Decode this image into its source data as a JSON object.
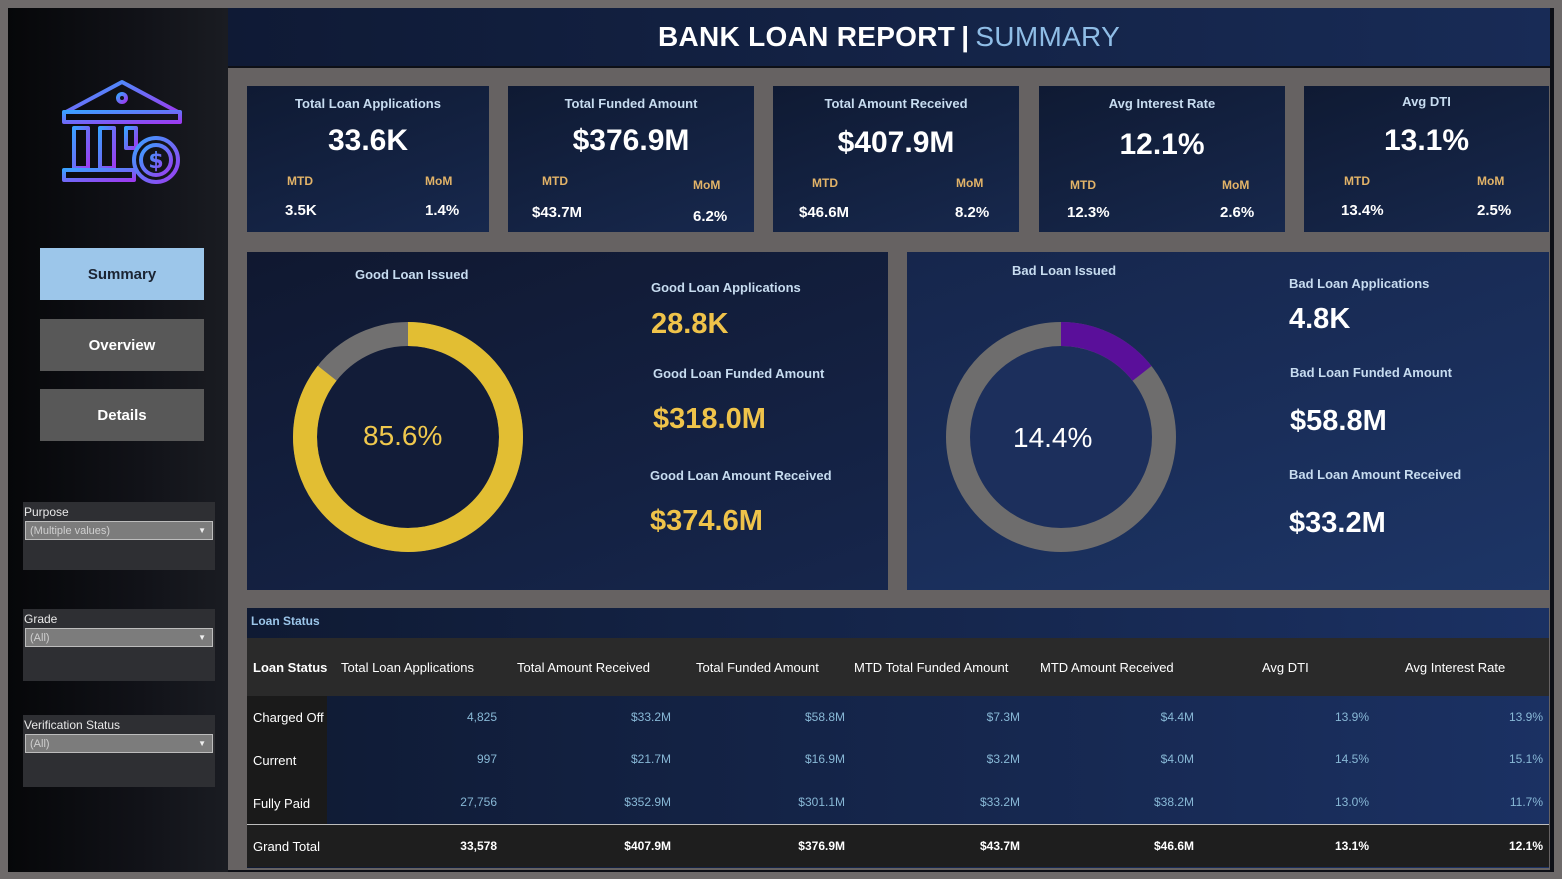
{
  "header": {
    "title_main": "BANK LOAN REPORT",
    "title_sep": "|",
    "title_sub": "SUMMARY"
  },
  "sidebar": {
    "logo": "bank-dollar-icon",
    "nav": [
      {
        "label": "Summary",
        "active": true
      },
      {
        "label": "Overview",
        "active": false
      },
      {
        "label": "Details",
        "active": false
      }
    ],
    "filters": [
      {
        "label": "Purpose",
        "value": "(Multiple values)"
      },
      {
        "label": "Grade",
        "value": "(All)"
      },
      {
        "label": "Verification Status",
        "value": "(All)"
      }
    ]
  },
  "kpis": [
    {
      "label": "Total Loan Applications",
      "value": "33.6K",
      "mtd_label": "MTD",
      "mtd": "3.5K",
      "mom_label": "MoM",
      "mom": "1.4%"
    },
    {
      "label": "Total Funded Amount",
      "value": "$376.9M",
      "mtd_label": "MTD",
      "mtd": "$43.7M",
      "mom_label": "MoM",
      "mom": "6.2%"
    },
    {
      "label": "Total Amount Received",
      "value": "$407.9M",
      "mtd_label": "MTD",
      "mtd": "$46.6M",
      "mom_label": "MoM",
      "mom": "8.2%"
    },
    {
      "label": "Avg Interest Rate",
      "value": "12.1%",
      "mtd_label": "MTD",
      "mtd": "12.3%",
      "mom_label": "MoM",
      "mom": "2.6%"
    },
    {
      "label": "Avg DTI",
      "value": "13.1%",
      "mtd_label": "MTD",
      "mtd": "13.4%",
      "mom_label": "MoM",
      "mom": "2.5%"
    }
  ],
  "good_loan": {
    "title": "Good Loan Issued",
    "percent": "85.6%",
    "fraction": 0.856,
    "applications_label": "Good Loan Applications",
    "applications": "28.8K",
    "funded_label": "Good Loan Funded Amount",
    "funded": "$318.0M",
    "received_label": "Good Loan Amount Received",
    "received": "$374.6M",
    "color": "#e2be33"
  },
  "bad_loan": {
    "title": "Bad Loan Issued",
    "percent": "14.4%",
    "fraction": 0.144,
    "applications_label": "Bad Loan Applications",
    "applications": "4.8K",
    "funded_label": "Bad Loan Funded Amount",
    "funded": "$58.8M",
    "received_label": "Bad Loan Amount Received",
    "received": "$33.2M",
    "color": "#5a0f9a"
  },
  "loan_status": {
    "title": "Loan Status",
    "columns": [
      "Loan Status",
      "Total Loan Applications",
      "Total Amount Received",
      "Total Funded Amount",
      "MTD Total Funded Amount",
      "MTD Amount Received",
      "Avg DTI",
      "Avg Interest Rate"
    ],
    "rows": [
      {
        "status": "Charged Off",
        "values": [
          "4,825",
          "$33.2M",
          "$58.8M",
          "$7.3M",
          "$4.4M",
          "13.9%",
          "13.9%"
        ]
      },
      {
        "status": "Current",
        "values": [
          "997",
          "$21.7M",
          "$16.9M",
          "$3.2M",
          "$4.0M",
          "14.5%",
          "15.1%"
        ]
      },
      {
        "status": "Fully Paid",
        "values": [
          "27,756",
          "$352.9M",
          "$301.1M",
          "$33.2M",
          "$38.2M",
          "13.0%",
          "11.7%"
        ]
      }
    ],
    "grand_total": {
      "label": "Grand Total",
      "values": [
        "33,578",
        "$407.9M",
        "$376.9M",
        "$43.7M",
        "$46.6M",
        "13.1%",
        "12.1%"
      ]
    }
  }
}
